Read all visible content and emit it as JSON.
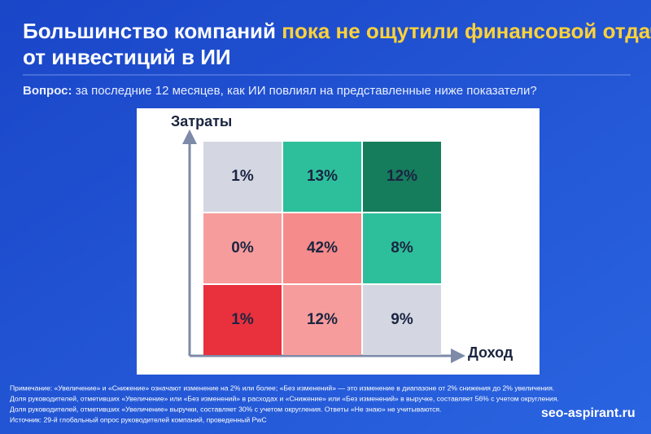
{
  "chart_data": {
    "type": "heatmap",
    "title": [
      "Большинство компаний",
      "пока не ощутили финансовой отдачи",
      "от инвестиций в ИИ"
    ],
    "subtitle": [
      "Вопрос:",
      "за последние 12 месяцев, как ИИ повлиял на представленные ниже показатели?"
    ],
    "x_label": "Доход",
    "y_label": "Затраты",
    "values": [
      [
        1,
        13,
        12
      ],
      [
        0,
        42,
        8
      ],
      [
        1,
        12,
        9
      ]
    ],
    "value_labels": [
      [
        "1%",
        "13%",
        "12%"
      ],
      [
        "0%",
        "42%",
        "8%"
      ],
      [
        "1%",
        "12%",
        "9%"
      ]
    ],
    "colors": [
      [
        "#d4d7e2",
        "#2dbf9c",
        "#157c5c"
      ],
      [
        "#f79c9c",
        "#f68b8b",
        "#2dbf9c"
      ],
      [
        "#e8313d",
        "#f79c9c",
        "#d4d7e2"
      ]
    ],
    "notes": [
      "Примечание: «Увеличение» и «Снижение» означают изменение на 2% или более; «Без изменений» — это изменение в диапазоне от 2% снижения до 2% увеличения.",
      "Доля руководителей, отметивших «Увеличение» или «Без изменений» в расходах и «Снижение» или «Без изменений» в выручке, составляет 56% с учетом округления.",
      "Доля руководителей, отметивших «Увеличение» выручки, составляет 30% с учетом округления. Ответы «Не знаю» не учитываются.",
      "Источник: 29-й глобальный опрос руководителей компаний, проведенный PwC"
    ],
    "watermark": "seo-aspirant.ru"
  }
}
